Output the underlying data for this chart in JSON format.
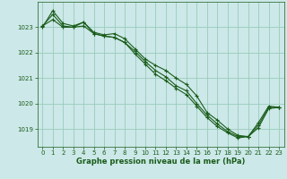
{
  "xlabel": "Graphe pression niveau de la mer (hPa)",
  "background_color": "#cce8e8",
  "grid_color": "#99ccbb",
  "line_color": "#1a5c1a",
  "ylim": [
    1018.3,
    1024.0
  ],
  "xlim": [
    -0.5,
    23.5
  ],
  "yticks": [
    1019,
    1020,
    1021,
    1022,
    1023
  ],
  "xticks": [
    0,
    1,
    2,
    3,
    4,
    5,
    6,
    7,
    8,
    9,
    10,
    11,
    12,
    13,
    14,
    15,
    16,
    17,
    18,
    19,
    20,
    21,
    22,
    23
  ],
  "series": [
    [
      1023.0,
      1023.65,
      1023.15,
      1023.05,
      1023.2,
      1022.8,
      1022.7,
      1022.75,
      1022.55,
      1022.15,
      1021.75,
      1021.5,
      1021.3,
      1021.0,
      1020.75,
      1020.3,
      1019.65,
      1019.35,
      1019.0,
      1018.75,
      1018.7,
      1019.25,
      1019.9,
      1019.85
    ],
    [
      1023.05,
      1023.3,
      1023.0,
      1023.0,
      1023.05,
      1022.75,
      1022.65,
      1022.6,
      1022.4,
      1021.95,
      1021.55,
      1021.15,
      1020.9,
      1020.6,
      1020.35,
      1019.9,
      1019.45,
      1019.1,
      1018.85,
      1018.65,
      1018.7,
      1019.05,
      1019.8,
      1019.85
    ],
    [
      1023.05,
      1023.5,
      1023.05,
      1023.0,
      1023.2,
      1022.75,
      1022.65,
      1022.6,
      1022.4,
      1022.05,
      1021.65,
      1021.3,
      1021.05,
      1020.7,
      1020.5,
      1020.0,
      1019.55,
      1019.2,
      1018.9,
      1018.7,
      1018.7,
      1019.15,
      1019.85,
      1019.85
    ]
  ]
}
